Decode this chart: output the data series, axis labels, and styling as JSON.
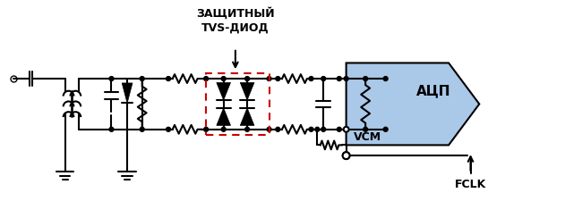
{
  "background_color": "#ffffff",
  "line_color": "#000000",
  "dashed_box_color": "#cc0000",
  "adc_fill_color": "#aac8e8",
  "label_tvs": "ЗАЩИТНЫЙ\nTVS-ДИОД",
  "label_adc": "АЦП",
  "label_vcm": "VCM",
  "label_fclk": "FCLK",
  "figsize": [
    6.5,
    2.44
  ],
  "dpi": 100
}
